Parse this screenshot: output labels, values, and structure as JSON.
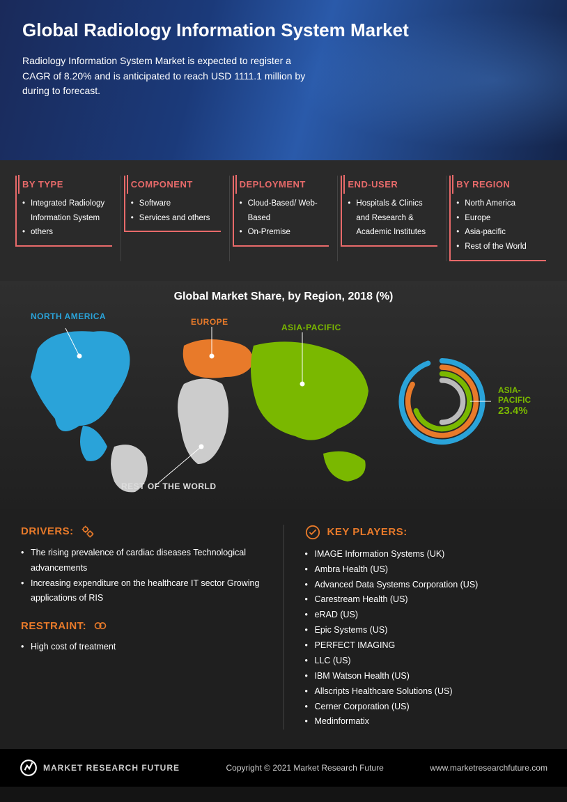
{
  "hero": {
    "title": "Global Radiology Information System Market",
    "subtitle": "Radiology Information System Market is expected to register a CAGR of 8.20% and is anticipated to reach USD 1111.1 million by during to forecast."
  },
  "categories": [
    {
      "title": "BY TYPE",
      "items": [
        "Integrated Radiology Information System",
        "others"
      ]
    },
    {
      "title": "COMPONENT",
      "items": [
        "Software",
        "Services and others"
      ]
    },
    {
      "title": "DEPLOYMENT",
      "items": [
        "Cloud-Based/ Web-Based",
        "On-Premise"
      ]
    },
    {
      "title": "END-USER",
      "items": [
        "Hospitals & Clinics and Research & Academic Institutes"
      ]
    },
    {
      "title": "BY REGION",
      "items": [
        "North America",
        "Europe",
        "Asia-pacific",
        "Rest of the World"
      ]
    }
  ],
  "map": {
    "title": "Global Market Share, by Region, 2018 (%)",
    "regions": {
      "north_america": {
        "label": "NORTH AMERICA",
        "color": "#2aa3d9"
      },
      "europe": {
        "label": "EUROPE",
        "color": "#e87a2a"
      },
      "asia_pacific": {
        "label": "ASIA-PACIFIC",
        "color": "#7ab800"
      },
      "rest": {
        "label": "REST OF THE WORLD",
        "color": "#cccccc"
      }
    },
    "donut": {
      "callout_label": "ASIA-PACIFIC",
      "callout_value": "23.4%",
      "callout_color": "#7ab800",
      "rings": [
        {
          "color": "#2aa3d9",
          "radius": 62,
          "sweep": 340
        },
        {
          "color": "#e87a2a",
          "radius": 52,
          "sweep": 300
        },
        {
          "color": "#7ab800",
          "radius": 42,
          "sweep": 250
        },
        {
          "color": "#bbbbbb",
          "radius": 32,
          "sweep": 180
        }
      ],
      "stroke_width": 8,
      "background": "#222"
    }
  },
  "drivers": {
    "title": "DRIVERS:",
    "items": [
      "The rising prevalence of cardiac diseases Technological advancements",
      "Increasing expenditure on the healthcare IT sector Growing applications of RIS"
    ]
  },
  "restraint": {
    "title": "RESTRAINT:",
    "items": [
      "High cost of treatment"
    ]
  },
  "key_players": {
    "title": "KEY PLAYERS:",
    "items": [
      "IMAGE Information Systems (UK)",
      "Ambra Health (US)",
      "Advanced Data Systems Corporation (US)",
      "Carestream Health (US)",
      "eRAD (US)",
      "Epic Systems (US)",
      "PERFECT IMAGING",
      "LLC (US)",
      "IBM Watson Health (US)",
      "Allscripts Healthcare Solutions (US)",
      "Cerner Corporation (US)",
      "Medinformatix"
    ]
  },
  "footer": {
    "brand": "MARKET RESEARCH FUTURE",
    "copyright": "Copyright © 2021 Market Research Future",
    "url": "www.marketresearchfuture.com"
  },
  "colors": {
    "accent_red": "#e86a6a",
    "accent_orange": "#e87a2a",
    "bg_dark": "#1f1f1f"
  }
}
